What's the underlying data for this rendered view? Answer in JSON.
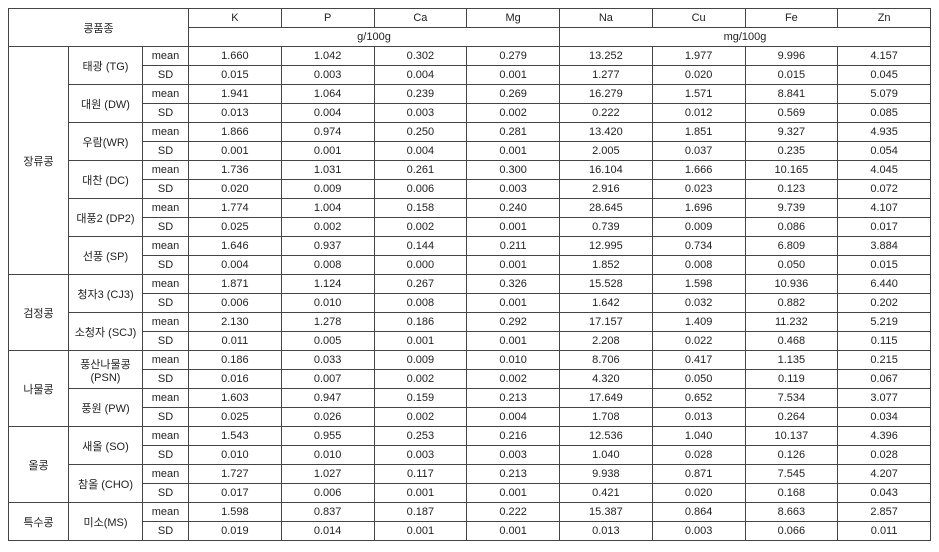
{
  "header": {
    "corner": "콩품종",
    "elements": [
      "K",
      "P",
      "Ca",
      "Mg",
      "Na",
      "Cu",
      "Fe",
      "Zn"
    ],
    "unit_g": "g/100g",
    "unit_mg": "mg/100g"
  },
  "stats": [
    "mean",
    "SD"
  ],
  "categories": [
    {
      "name": "장류콩",
      "varieties": [
        {
          "name": "태광 (TG)",
          "mean": [
            "1.660",
            "1.042",
            "0.302",
            "0.279",
            "13.252",
            "1.977",
            "9.996",
            "4.157"
          ],
          "sd": [
            "0.015",
            "0.003",
            "0.004",
            "0.001",
            "1.277",
            "0.020",
            "0.015",
            "0.045"
          ]
        },
        {
          "name": "대원 (DW)",
          "mean": [
            "1.941",
            "1.064",
            "0.239",
            "0.269",
            "16.279",
            "1.571",
            "8.841",
            "5.079"
          ],
          "sd": [
            "0.013",
            "0.004",
            "0.003",
            "0.002",
            "0.222",
            "0.012",
            "0.569",
            "0.085"
          ]
        },
        {
          "name": "우람(WR)",
          "mean": [
            "1.866",
            "0.974",
            "0.250",
            "0.281",
            "13.420",
            "1.851",
            "9.327",
            "4.935"
          ],
          "sd": [
            "0.001",
            "0.001",
            "0.004",
            "0.001",
            "2.005",
            "0.037",
            "0.235",
            "0.054"
          ]
        },
        {
          "name": "대찬 (DC)",
          "mean": [
            "1.736",
            "1.031",
            "0.261",
            "0.300",
            "16.104",
            "1.666",
            "10.165",
            "4.045"
          ],
          "sd": [
            "0.020",
            "0.009",
            "0.006",
            "0.003",
            "2.916",
            "0.023",
            "0.123",
            "0.072"
          ]
        },
        {
          "name": "대풍2 (DP2)",
          "tall": true,
          "mean": [
            "1.774",
            "1.004",
            "0.158",
            "0.240",
            "28.645",
            "1.696",
            "9.739",
            "4.107"
          ],
          "sd": [
            "0.025",
            "0.002",
            "0.002",
            "0.001",
            "0.739",
            "0.009",
            "0.086",
            "0.017"
          ]
        },
        {
          "name": "선풍 (SP)",
          "mean": [
            "1.646",
            "0.937",
            "0.144",
            "0.211",
            "12.995",
            "0.734",
            "6.809",
            "3.884"
          ],
          "sd": [
            "0.004",
            "0.008",
            "0.000",
            "0.001",
            "1.852",
            "0.008",
            "0.050",
            "0.015"
          ]
        }
      ]
    },
    {
      "name": "검정콩",
      "varieties": [
        {
          "name": "청자3 (CJ3)",
          "mean": [
            "1.871",
            "1.124",
            "0.267",
            "0.326",
            "15.528",
            "1.598",
            "10.936",
            "6.440"
          ],
          "sd": [
            "0.006",
            "0.010",
            "0.008",
            "0.001",
            "1.642",
            "0.032",
            "0.882",
            "0.202"
          ]
        },
        {
          "name": "소청자 (SCJ)",
          "mean": [
            "2.130",
            "1.278",
            "0.186",
            "0.292",
            "17.157",
            "1.409",
            "11.232",
            "5.219"
          ],
          "sd": [
            "0.011",
            "0.005",
            "0.001",
            "0.001",
            "2.208",
            "0.022",
            "0.468",
            "0.115"
          ]
        }
      ]
    },
    {
      "name": "나물콩",
      "varieties": [
        {
          "name": "풍산나물콩 (PSN)",
          "tall": true,
          "mean": [
            "0.186",
            "0.033",
            "0.009",
            "0.010",
            "8.706",
            "0.417",
            "1.135",
            "0.215"
          ],
          "sd": [
            "0.016",
            "0.007",
            "0.002",
            "0.002",
            "4.320",
            "0.050",
            "0.119",
            "0.067"
          ]
        },
        {
          "name": "풍원 (PW)",
          "mean": [
            "1.603",
            "0.947",
            "0.159",
            "0.213",
            "17.649",
            "0.652",
            "7.534",
            "3.077"
          ],
          "sd": [
            "0.025",
            "0.026",
            "0.002",
            "0.004",
            "1.708",
            "0.013",
            "0.264",
            "0.034"
          ]
        }
      ]
    },
    {
      "name": "올콩",
      "varieties": [
        {
          "name": "새올 (SO)",
          "tall": true,
          "mean": [
            "1.543",
            "0.955",
            "0.253",
            "0.216",
            "12.536",
            "1.040",
            "10.137",
            "4.396"
          ],
          "sd": [
            "0.010",
            "0.010",
            "0.003",
            "0.003",
            "1.040",
            "0.028",
            "0.126",
            "0.028"
          ]
        },
        {
          "name": "참올 (CHO)",
          "mean": [
            "1.727",
            "1.027",
            "0.117",
            "0.213",
            "9.938",
            "0.871",
            "7.545",
            "4.207"
          ],
          "sd": [
            "0.017",
            "0.006",
            "0.001",
            "0.001",
            "0.421",
            "0.020",
            "0.168",
            "0.043"
          ]
        }
      ]
    },
    {
      "name": "특수콩",
      "varieties": [
        {
          "name": "미소(MS)",
          "mean": [
            "1.598",
            "0.837",
            "0.187",
            "0.222",
            "15.387",
            "0.864",
            "8.663",
            "2.857"
          ],
          "sd": [
            "0.019",
            "0.014",
            "0.001",
            "0.001",
            "0.013",
            "0.003",
            "0.066",
            "0.011"
          ]
        }
      ]
    }
  ]
}
